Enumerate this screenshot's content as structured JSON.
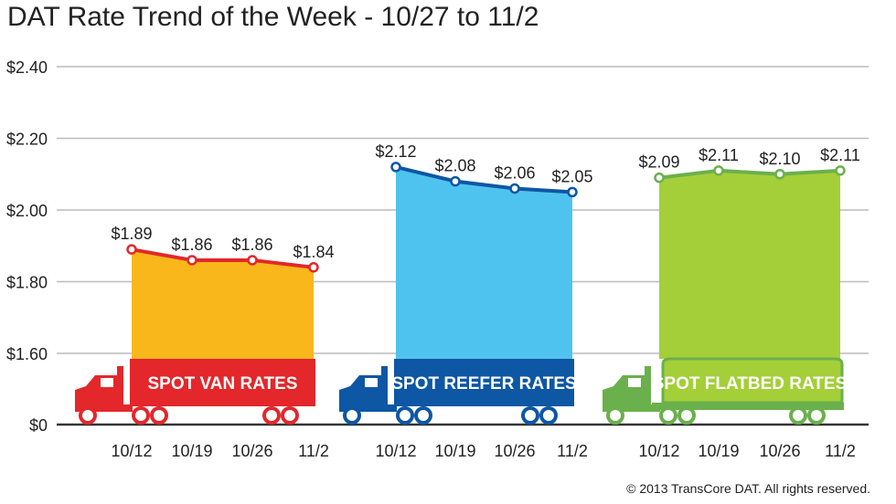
{
  "title": "DAT Rate Trend of the Week - 10/27 to 11/2",
  "copyright": "© 2013 TransCore DAT. All rights reserved.",
  "chart_data": {
    "type": "area",
    "title": "DAT Rate Trend of the Week - 10/27 to 11/2",
    "xlabel": "",
    "ylabel": "",
    "ylim": [
      0,
      2.4
    ],
    "y_ticks": [
      "$0",
      "$1.60",
      "$1.80",
      "$2.00",
      "$2.20",
      "$2.40"
    ],
    "y_axis_note": "axis break between $0 and $1.60",
    "grid": true,
    "groups": [
      {
        "name": "SPOT VAN RATES",
        "color": "#f9b71b",
        "line_color": "#e3272b",
        "banner_color": "#e3272b",
        "categories": [
          "10/12",
          "10/19",
          "10/26",
          "11/2"
        ],
        "values": [
          1.89,
          1.86,
          1.86,
          1.84
        ],
        "labels": [
          "$1.89",
          "$1.86",
          "$1.86",
          "$1.84"
        ]
      },
      {
        "name": "SPOT REEFER RATES",
        "color": "#4fc3ef",
        "line_color": "#0d57a5",
        "banner_color": "#0d57a5",
        "categories": [
          "10/12",
          "10/19",
          "10/26",
          "11/2"
        ],
        "values": [
          2.12,
          2.08,
          2.06,
          2.05
        ],
        "labels": [
          "$2.12",
          "$2.08",
          "$2.06",
          "$2.05"
        ]
      },
      {
        "name": "SPOT FLATBED RATES",
        "color": "#a4cf38",
        "line_color": "#6ab04c",
        "banner_color": "#6ab04c",
        "categories": [
          "10/12",
          "10/19",
          "10/26",
          "11/2"
        ],
        "values": [
          2.09,
          2.11,
          2.1,
          2.11
        ],
        "labels": [
          "$2.09",
          "$2.11",
          "$2.10",
          "$2.11"
        ]
      }
    ]
  }
}
